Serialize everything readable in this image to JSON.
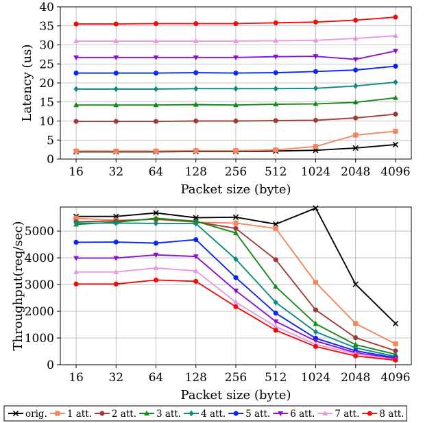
{
  "chart_data": [
    {
      "type": "line",
      "xlabel": "Packet size (byte)",
      "ylabel": "Latency (us)",
      "categories": [
        "16",
        "32",
        "64",
        "128",
        "256",
        "512",
        "1024",
        "2048",
        "4096"
      ],
      "ylim": [
        0,
        40
      ],
      "yticks": [
        0,
        5,
        10,
        15,
        20,
        25,
        30,
        35,
        40
      ],
      "grid": true,
      "series": [
        {
          "name": "orig.",
          "values": [
            1.9,
            1.9,
            1.9,
            2.0,
            2.0,
            2.1,
            2.3,
            2.9,
            3.8
          ]
        },
        {
          "name": "1 att.",
          "values": [
            2.1,
            2.1,
            2.1,
            2.2,
            2.2,
            2.4,
            3.3,
            6.3,
            7.3
          ]
        },
        {
          "name": "2 att.",
          "values": [
            9.9,
            9.9,
            9.9,
            10.0,
            10.0,
            10.1,
            10.2,
            10.8,
            11.8
          ]
        },
        {
          "name": "3 att.",
          "values": [
            14.2,
            14.2,
            14.2,
            14.3,
            14.2,
            14.4,
            14.5,
            14.9,
            16.1
          ]
        },
        {
          "name": "4 att.",
          "values": [
            18.4,
            18.4,
            18.4,
            18.5,
            18.5,
            18.5,
            18.6,
            19.2,
            20.2
          ]
        },
        {
          "name": "5 att.",
          "values": [
            22.6,
            22.6,
            22.6,
            22.7,
            22.6,
            22.7,
            23.0,
            23.4,
            24.4
          ]
        },
        {
          "name": "6 att.",
          "values": [
            26.7,
            26.7,
            26.7,
            26.7,
            26.7,
            26.9,
            27.0,
            26.2,
            28.4
          ]
        },
        {
          "name": "7 att.",
          "values": [
            31.0,
            31.0,
            31.0,
            31.0,
            31.0,
            31.1,
            31.2,
            31.7,
            32.4
          ]
        },
        {
          "name": "8 att.",
          "values": [
            35.5,
            35.5,
            35.6,
            35.6,
            35.6,
            35.8,
            36.0,
            36.5,
            37.3
          ]
        }
      ]
    },
    {
      "type": "line",
      "xlabel": "Packet size (byte)",
      "ylabel": "Throughput(req/sec)",
      "categories": [
        "16",
        "32",
        "64",
        "128",
        "256",
        "512",
        "1024",
        "2048",
        "4096"
      ],
      "ylim": [
        0,
        5900
      ],
      "yticks": [
        0,
        1000,
        2000,
        3000,
        4000,
        5000
      ],
      "grid": true,
      "series": [
        {
          "name": "orig.",
          "values": [
            5550,
            5550,
            5680,
            5500,
            5520,
            5260,
            5860,
            3010,
            1540
          ]
        },
        {
          "name": "1 att.",
          "values": [
            5480,
            5400,
            5440,
            5330,
            5300,
            5100,
            3080,
            1540,
            780
          ]
        },
        {
          "name": "2 att.",
          "values": [
            5350,
            5380,
            5450,
            5350,
            5100,
            3930,
            2050,
            1010,
            520
          ]
        },
        {
          "name": "3 att.",
          "values": [
            5250,
            5330,
            5480,
            5370,
            4930,
            2920,
            1530,
            750,
            390
          ]
        },
        {
          "name": "4 att.",
          "values": [
            5300,
            5300,
            5290,
            5280,
            3950,
            2330,
            1230,
            630,
            310
          ]
        },
        {
          "name": "5 att.",
          "values": [
            4580,
            4590,
            4550,
            4680,
            3260,
            1930,
            990,
            520,
            260
          ]
        },
        {
          "name": "6 att.",
          "values": [
            3990,
            3990,
            4110,
            4050,
            2770,
            1620,
            890,
            450,
            230
          ]
        },
        {
          "name": "7 att.",
          "values": [
            3470,
            3470,
            3620,
            3510,
            2340,
            1430,
            760,
            410,
            190
          ]
        },
        {
          "name": "8 att.",
          "values": [
            3020,
            3020,
            3170,
            3120,
            2170,
            1290,
            680,
            330,
            170
          ]
        }
      ]
    }
  ],
  "legend": {
    "placement": "bottom",
    "entries": [
      {
        "label": "orig.",
        "color": "#000000",
        "marker": "x"
      },
      {
        "label": "1 att.",
        "color": "#f4855c",
        "marker": "square"
      },
      {
        "label": "2 att.",
        "color": "#a23b35",
        "marker": "circle"
      },
      {
        "label": "3 att.",
        "color": "#138a16",
        "marker": "triangle"
      },
      {
        "label": "4 att.",
        "color": "#0e8a80",
        "marker": "diamond"
      },
      {
        "label": "5 att.",
        "color": "#0a26f2",
        "marker": "circle"
      },
      {
        "label": "6 att.",
        "color": "#8c0fd2",
        "marker": "triangle-down"
      },
      {
        "label": "7 att.",
        "color": "#e69ade",
        "marker": "triangle"
      },
      {
        "label": "8 att.",
        "color": "#f20d0d",
        "marker": "circle"
      }
    ]
  }
}
